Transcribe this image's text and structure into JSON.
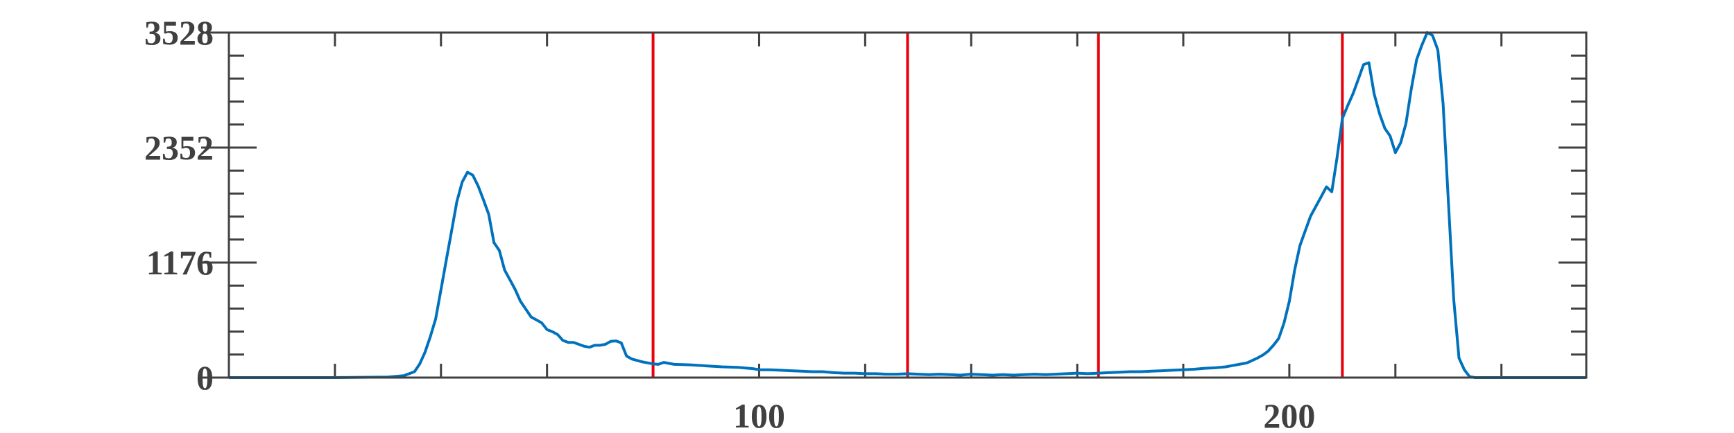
{
  "chart_data": {
    "type": "line",
    "title": "",
    "xlabel": "",
    "ylabel": "",
    "xlim": [
      0,
      256
    ],
    "ylim": [
      0,
      3528
    ],
    "x_ticks": [
      100,
      200
    ],
    "x_tick_labels": [
      "100",
      "200"
    ],
    "y_ticks": [
      0,
      1176,
      2352,
      3528
    ],
    "y_tick_labels": [
      "0",
      "1176",
      "2352",
      "3528"
    ],
    "grid": false,
    "box": true,
    "series": [
      {
        "color": "#0072bd",
        "points": [
          [
            0,
            0
          ],
          [
            20,
            0
          ],
          [
            30,
            5
          ],
          [
            33,
            20
          ],
          [
            35,
            60
          ],
          [
            36,
            140
          ],
          [
            37,
            260
          ],
          [
            38,
            420
          ],
          [
            39,
            600
          ],
          [
            40,
            900
          ],
          [
            41,
            1200
          ],
          [
            42,
            1500
          ],
          [
            43,
            1800
          ],
          [
            44,
            2000
          ],
          [
            45,
            2100
          ],
          [
            46,
            2070
          ],
          [
            47,
            1960
          ],
          [
            48,
            1820
          ],
          [
            49,
            1670
          ],
          [
            50,
            1380
          ],
          [
            51,
            1300
          ],
          [
            52,
            1100
          ],
          [
            53,
            1000
          ],
          [
            54,
            900
          ],
          [
            55,
            780
          ],
          [
            56,
            700
          ],
          [
            57,
            620
          ],
          [
            58,
            590
          ],
          [
            59,
            560
          ],
          [
            60,
            490
          ],
          [
            61,
            470
          ],
          [
            62,
            440
          ],
          [
            63,
            380
          ],
          [
            64,
            360
          ],
          [
            65,
            360
          ],
          [
            66,
            340
          ],
          [
            67,
            320
          ],
          [
            68,
            310
          ],
          [
            69,
            330
          ],
          [
            70,
            330
          ],
          [
            71,
            340
          ],
          [
            72,
            370
          ],
          [
            73,
            375
          ],
          [
            74,
            355
          ],
          [
            75,
            220
          ],
          [
            76,
            190
          ],
          [
            77,
            175
          ],
          [
            78,
            160
          ],
          [
            79,
            150
          ],
          [
            80,
            140
          ],
          [
            81,
            135
          ],
          [
            82,
            155
          ],
          [
            84,
            135
          ],
          [
            87,
            130
          ],
          [
            90,
            120
          ],
          [
            93,
            110
          ],
          [
            96,
            105
          ],
          [
            99,
            90
          ],
          [
            100,
            80
          ],
          [
            102,
            80
          ],
          [
            104,
            75
          ],
          [
            106,
            70
          ],
          [
            108,
            65
          ],
          [
            110,
            60
          ],
          [
            112,
            60
          ],
          [
            114,
            50
          ],
          [
            116,
            45
          ],
          [
            118,
            45
          ],
          [
            120,
            40
          ],
          [
            122,
            40
          ],
          [
            124,
            35
          ],
          [
            126,
            35
          ],
          [
            128,
            40
          ],
          [
            130,
            35
          ],
          [
            132,
            30
          ],
          [
            134,
            35
          ],
          [
            136,
            30
          ],
          [
            138,
            25
          ],
          [
            140,
            35
          ],
          [
            142,
            30
          ],
          [
            144,
            25
          ],
          [
            146,
            30
          ],
          [
            148,
            25
          ],
          [
            150,
            30
          ],
          [
            152,
            35
          ],
          [
            154,
            30
          ],
          [
            156,
            35
          ],
          [
            158,
            40
          ],
          [
            160,
            45
          ],
          [
            162,
            40
          ],
          [
            164,
            45
          ],
          [
            166,
            50
          ],
          [
            168,
            55
          ],
          [
            170,
            60
          ],
          [
            172,
            60
          ],
          [
            174,
            65
          ],
          [
            176,
            70
          ],
          [
            178,
            75
          ],
          [
            180,
            80
          ],
          [
            182,
            85
          ],
          [
            184,
            95
          ],
          [
            186,
            100
          ],
          [
            188,
            110
          ],
          [
            190,
            130
          ],
          [
            192,
            150
          ],
          [
            194,
            200
          ],
          [
            195,
            230
          ],
          [
            196,
            270
          ],
          [
            197,
            330
          ],
          [
            198,
            400
          ],
          [
            199,
            560
          ],
          [
            200,
            780
          ],
          [
            201,
            1100
          ],
          [
            202,
            1350
          ],
          [
            203,
            1500
          ],
          [
            204,
            1650
          ],
          [
            205,
            1750
          ],
          [
            206,
            1850
          ],
          [
            207,
            1950
          ],
          [
            208,
            1900
          ],
          [
            209,
            2250
          ],
          [
            210,
            2650
          ],
          [
            211,
            2780
          ],
          [
            212,
            2900
          ],
          [
            213,
            3050
          ],
          [
            214,
            3200
          ],
          [
            215,
            3220
          ],
          [
            216,
            2900
          ],
          [
            217,
            2700
          ],
          [
            218,
            2550
          ],
          [
            219,
            2470
          ],
          [
            220,
            2300
          ],
          [
            221,
            2400
          ],
          [
            222,
            2600
          ],
          [
            223,
            2950
          ],
          [
            224,
            3250
          ],
          [
            225,
            3400
          ],
          [
            226,
            3528
          ],
          [
            227,
            3500
          ],
          [
            228,
            3350
          ],
          [
            229,
            2800
          ],
          [
            230,
            1800
          ],
          [
            231,
            800
          ],
          [
            232,
            200
          ],
          [
            233,
            80
          ],
          [
            234,
            10
          ],
          [
            235,
            0
          ],
          [
            256,
            0
          ]
        ]
      }
    ],
    "vertical_lines": {
      "color": "#e8000b",
      "x": [
        80,
        128,
        164,
        210
      ]
    }
  }
}
